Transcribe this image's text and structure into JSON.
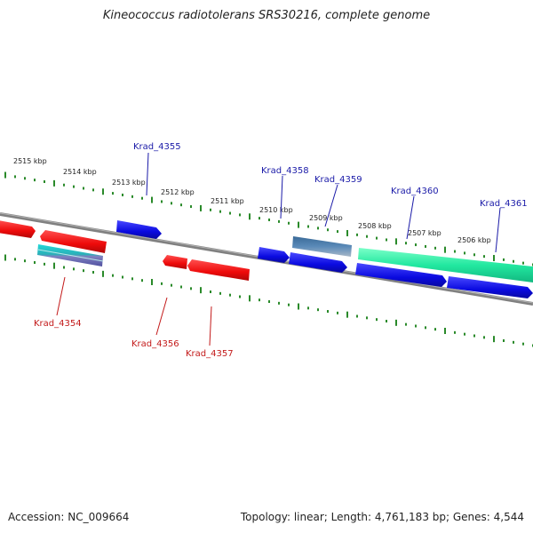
{
  "header": {
    "title": "Kineococcus radiotolerans SRS30216, complete genome"
  },
  "footer": {
    "accession": "Accession: NC_009664",
    "summary": "Topology: linear; Length: 4,761,183 bp; Genes: 4,544"
  },
  "map": {
    "ruler_labels": [
      {
        "text": "2515 kbp",
        "kbp": 2515
      },
      {
        "text": "2514 kbp",
        "kbp": 2514
      },
      {
        "text": "2513 kbp",
        "kbp": 2513
      },
      {
        "text": "2512 kbp",
        "kbp": 2512
      },
      {
        "text": "2511 kbp",
        "kbp": 2511
      },
      {
        "text": "2510 kbp",
        "kbp": 2510
      },
      {
        "text": "2509 kbp",
        "kbp": 2509
      },
      {
        "text": "2508 kbp",
        "kbp": 2508
      },
      {
        "text": "2507 kbp",
        "kbp": 2507
      },
      {
        "text": "2506 kbp",
        "kbp": 2506
      }
    ],
    "gene_labels": [
      {
        "text": "Krad_4355",
        "strand": "forward"
      },
      {
        "text": "Krad_4358",
        "strand": "forward"
      },
      {
        "text": "Krad_4359",
        "strand": "forward"
      },
      {
        "text": "Krad_4360",
        "strand": "forward"
      },
      {
        "text": "Krad_4361",
        "strand": "forward"
      },
      {
        "text": "Krad_4354",
        "strand": "reverse"
      },
      {
        "text": "Krad_4356",
        "strand": "reverse"
      },
      {
        "text": "Krad_4357",
        "strand": "reverse"
      }
    ],
    "colors": {
      "forward_gene": "#0a0ae0",
      "reverse_gene": "#ee0a0a",
      "rrna_teal": "#2ac8c8",
      "trna_steel": "#4a7aa8",
      "pseudo_green": "#22e8a0",
      "backbone": "#808080",
      "ruler_ticks": "#2a8a2a",
      "label_forward": "#1a1aa8",
      "label_reverse": "#c31a1a"
    }
  }
}
